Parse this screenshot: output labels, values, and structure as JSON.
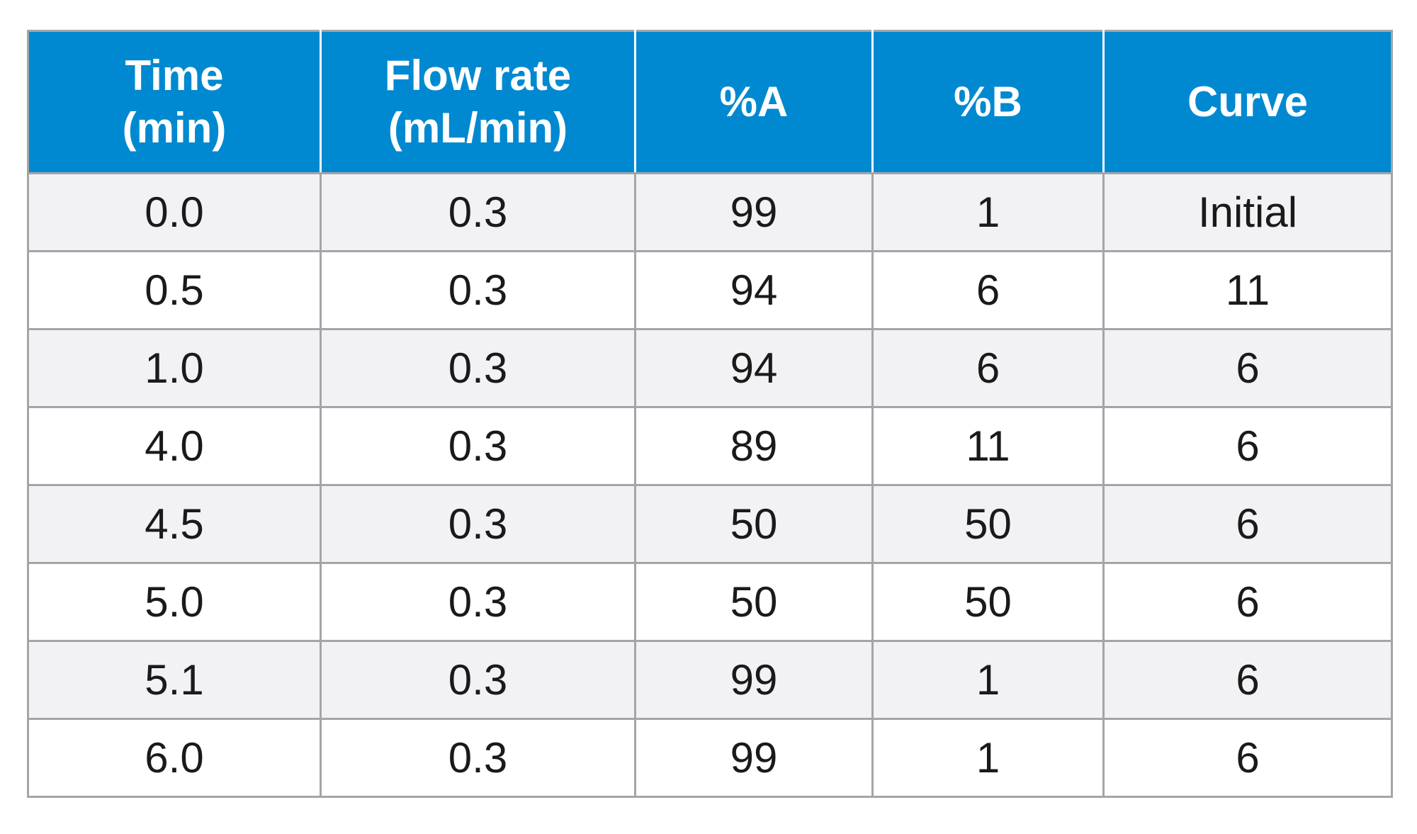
{
  "table": {
    "header": [
      [
        "Time",
        "(min)"
      ],
      [
        "Flow rate",
        "(mL/min)"
      ],
      [
        "%A"
      ],
      [
        "%B"
      ],
      [
        "Curve"
      ]
    ],
    "rows": [
      [
        "0.0",
        "0.3",
        "99",
        "1",
        "Initial"
      ],
      [
        "0.5",
        "0.3",
        "94",
        "6",
        "11"
      ],
      [
        "1.0",
        "0.3",
        "94",
        "6",
        "6"
      ],
      [
        "4.0",
        "0.3",
        "89",
        "11",
        "6"
      ],
      [
        "4.5",
        "0.3",
        "50",
        "50",
        "6"
      ],
      [
        "5.0",
        "0.3",
        "50",
        "50",
        "6"
      ],
      [
        "5.1",
        "0.3",
        "99",
        "1",
        "6"
      ],
      [
        "6.0",
        "0.3",
        "99",
        "1",
        "6"
      ]
    ]
  }
}
